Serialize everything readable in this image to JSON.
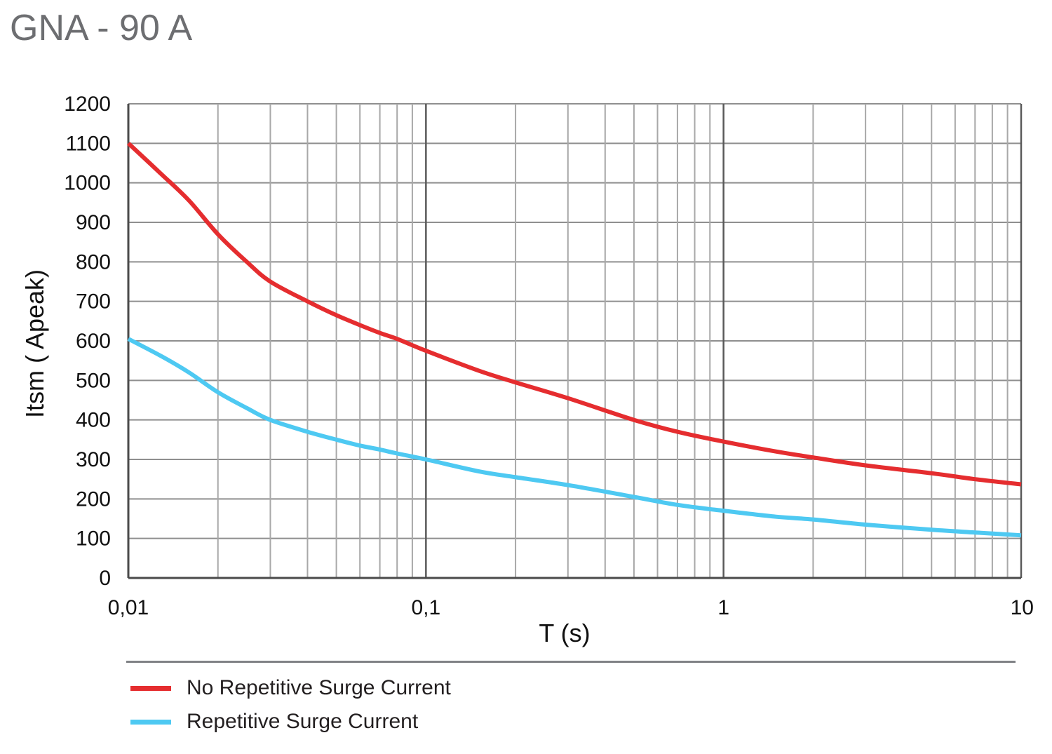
{
  "chart_title": "GNA - 90 A",
  "chart_data": {
    "type": "line",
    "title": "GNA - 90 A",
    "xlabel": "T (s)",
    "ylabel": "Itsm ( Apeak)",
    "xscale": "log",
    "xlim": [
      0.01,
      10
    ],
    "ylim": [
      0,
      1200
    ],
    "x_tick_labels": [
      "0,01",
      "0,1",
      "1",
      "10"
    ],
    "y_ticks": [
      0,
      100,
      200,
      300,
      400,
      500,
      600,
      700,
      800,
      900,
      1000,
      1100,
      1200
    ],
    "grid": true,
    "legend_position": "bottom",
    "series": [
      {
        "name": "No Repetitive Surge Current",
        "color": "#e52d2f",
        "x": [
          0.01,
          0.013,
          0.016,
          0.02,
          0.025,
          0.03,
          0.04,
          0.05,
          0.06,
          0.07,
          0.08,
          0.1,
          0.15,
          0.2,
          0.3,
          0.5,
          0.7,
          1,
          1.5,
          2,
          3,
          5,
          7,
          10
        ],
        "y": [
          1100,
          1020,
          955,
          870,
          800,
          750,
          700,
          665,
          640,
          620,
          605,
          575,
          525,
          495,
          455,
          400,
          370,
          345,
          320,
          305,
          285,
          265,
          250,
          237
        ]
      },
      {
        "name": "Repetitive Surge Current",
        "color": "#4ec9f2",
        "x": [
          0.01,
          0.013,
          0.016,
          0.02,
          0.025,
          0.03,
          0.04,
          0.05,
          0.06,
          0.07,
          0.08,
          0.1,
          0.15,
          0.2,
          0.3,
          0.5,
          0.7,
          1,
          1.5,
          2,
          3,
          5,
          7,
          10
        ],
        "y": [
          605,
          560,
          520,
          470,
          430,
          400,
          370,
          350,
          335,
          325,
          315,
          300,
          270,
          255,
          235,
          205,
          185,
          170,
          155,
          148,
          135,
          122,
          115,
          108
        ]
      }
    ]
  }
}
